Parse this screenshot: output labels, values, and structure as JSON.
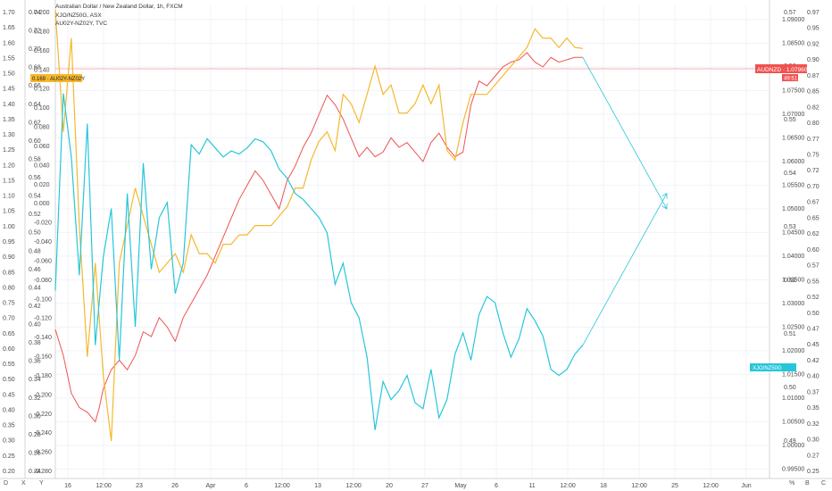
{
  "chart_data": {
    "type": "line",
    "legend": [
      "Australian Dollar / New Zealand Dollar, 1h, FXCM",
      "XJO/NZ50G, ASX",
      "AU02Y-NZ02Y, TVC"
    ],
    "x_ticks": [
      "16",
      "12:00",
      "23",
      "26",
      "Apr",
      "6",
      "12:00",
      "13",
      "12:00",
      "20",
      "27",
      "May",
      "6",
      "11",
      "12:00",
      "18",
      "12:00",
      "25",
      "12:00",
      "Jun"
    ],
    "axes": {
      "far_left": {
        "ticks": [
          "1.70",
          "1.65",
          "1.60",
          "1.55",
          "1.50",
          "1.45",
          "1.40",
          "1.35",
          "1.30",
          "1.25",
          "1.20",
          "1.15",
          "1.10",
          "1.05",
          "1.00",
          "0.95",
          "0.90",
          "0.85",
          "0.80",
          "0.75",
          "0.70",
          "0.65",
          "0.60",
          "0.55",
          "0.50",
          "0.45",
          "0.40",
          "0.35",
          "0.30",
          "0.25",
          "0.20"
        ]
      },
      "inner_left": {
        "ticks": [
          "0.74",
          "0.72",
          "0.70",
          "0.68",
          "0.66",
          "0.64",
          "0.62",
          "0.60",
          "0.58",
          "0.56",
          "0.54",
          "0.52",
          "0.50",
          "0.48",
          "0.46",
          "0.44",
          "0.42",
          "0.40",
          "0.38",
          "0.36",
          "0.34",
          "0.32",
          "0.30",
          "0.28",
          "0.26",
          "0.24"
        ]
      },
      "inner_left_b": {
        "ticks": [
          "0.200",
          "0.180",
          "0.160",
          "0.140",
          "0.120",
          "0.100",
          "0.080",
          "0.060",
          "0.040",
          "0.020",
          "0.000",
          "-0.020",
          "-0.040",
          "-0.060",
          "-0.080",
          "-0.100",
          "-0.120",
          "-0.140",
          "-0.160",
          "-0.180",
          "-0.200",
          "-0.220",
          "-0.240",
          "-0.260",
          "-0.280"
        ]
      },
      "price_right": {
        "ticks": [
          "1.09000",
          "1.08500",
          "1.08000",
          "1.07500",
          "1.07000",
          "1.06500",
          "1.06000",
          "1.05500",
          "1.05000",
          "1.04500",
          "1.04000",
          "1.03500",
          "1.03000",
          "1.02500",
          "1.02000",
          "1.01500",
          "1.01000",
          "1.00500",
          "1.00000",
          "0.99500"
        ]
      },
      "far_right": {
        "ticks": [
          "0.97",
          "0.95",
          "0.92",
          "0.90",
          "0.87",
          "0.85",
          "0.82",
          "0.80",
          "0.77",
          "0.75",
          "0.72",
          "0.70",
          "0.67",
          "0.65",
          "0.62",
          "0.60",
          "0.57",
          "0.55",
          "0.52",
          "0.50",
          "0.47",
          "0.45",
          "0.42",
          "0.40",
          "0.37",
          "0.35",
          "0.32",
          "0.30",
          "0.27",
          "0.25"
        ]
      },
      "alt_right": {
        "ticks": [
          "0.57",
          "0.56",
          "0.55",
          "0.54",
          "0.53",
          "0.52",
          "0.51",
          "0.50",
          "0.49"
        ]
      }
    },
    "series": [
      {
        "color": "#ef5350",
        "x": [
          0,
          10,
          20,
          30,
          40,
          50,
          55,
          60,
          70,
          80,
          90,
          100,
          110,
          120,
          130,
          140,
          150,
          160,
          170,
          180,
          190,
          200,
          210,
          220,
          230,
          240,
          250,
          260,
          270,
          280,
          290,
          300,
          310,
          320,
          330,
          340,
          350,
          360,
          370,
          380,
          390,
          400,
          410,
          420,
          430,
          440,
          450,
          460,
          470,
          480,
          490,
          500,
          510,
          520,
          530,
          540,
          550,
          560,
          570,
          580,
          590,
          600,
          610,
          620,
          630,
          640,
          650,
          660
        ],
        "y": [
          1.0245,
          1.019,
          1.011,
          1.008,
          1.007,
          1.005,
          1.008,
          1.012,
          1.016,
          1.018,
          1.016,
          1.019,
          1.024,
          1.023,
          1.027,
          1.025,
          1.022,
          1.027,
          1.03,
          1.033,
          1.036,
          1.04,
          1.044,
          1.048,
          1.052,
          1.055,
          1.058,
          1.056,
          1.053,
          1.05,
          1.056,
          1.059,
          1.063,
          1.066,
          1.07,
          1.074,
          1.072,
          1.069,
          1.065,
          1.061,
          1.063,
          1.061,
          1.062,
          1.065,
          1.063,
          1.064,
          1.062,
          1.06,
          1.064,
          1.066,
          1.063,
          1.061,
          1.062,
          1.072,
          1.077,
          1.076,
          1.078,
          1.08,
          1.081,
          1.0815,
          1.083,
          1.081,
          1.08,
          1.082,
          1.081,
          1.0815,
          1.082,
          1.082
        ]
      },
      {
        "color": "#f5b82e",
        "x": [
          0,
          10,
          20,
          30,
          40,
          50,
          60,
          70,
          80,
          90,
          100,
          110,
          120,
          130,
          140,
          150,
          160,
          170,
          180,
          190,
          200,
          210,
          220,
          230,
          240,
          250,
          260,
          270,
          280,
          290,
          300,
          310,
          320,
          330,
          340,
          350,
          360,
          370,
          380,
          390,
          400,
          410,
          420,
          430,
          440,
          450,
          460,
          470,
          480,
          490,
          500,
          510,
          520,
          530,
          540,
          550,
          560,
          570,
          580,
          590,
          600,
          610,
          620,
          630,
          640,
          650,
          660
        ],
        "y": [
          0.21,
          0.08,
          0.18,
          -0.02,
          -0.16,
          -0.06,
          -0.18,
          -0.25,
          -0.06,
          -0.02,
          0.02,
          -0.01,
          -0.04,
          -0.07,
          -0.06,
          -0.05,
          -0.07,
          -0.03,
          -0.05,
          -0.05,
          -0.06,
          -0.04,
          -0.04,
          -0.03,
          -0.03,
          -0.02,
          -0.02,
          -0.02,
          -0.01,
          0.0,
          0.02,
          0.02,
          0.05,
          0.07,
          0.08,
          0.06,
          0.12,
          0.11,
          0.09,
          0.12,
          0.15,
          0.12,
          0.13,
          0.1,
          0.1,
          0.11,
          0.13,
          0.11,
          0.13,
          0.06,
          0.05,
          0.09,
          0.12,
          0.12,
          0.12,
          0.13,
          0.14,
          0.15,
          0.16,
          0.17,
          0.19,
          0.18,
          0.18,
          0.17,
          0.18,
          0.17,
          0.169
        ]
      },
      {
        "color": "#26c6da",
        "x": [
          0,
          10,
          20,
          30,
          40,
          50,
          60,
          70,
          80,
          90,
          100,
          110,
          120,
          130,
          140,
          150,
          160,
          170,
          180,
          190,
          200,
          210,
          220,
          230,
          240,
          250,
          260,
          270,
          280,
          290,
          300,
          310,
          320,
          330,
          340,
          350,
          360,
          370,
          380,
          390,
          400,
          410,
          420,
          430,
          440,
          450,
          460,
          470,
          480,
          490,
          500,
          510,
          520,
          530,
          540,
          550,
          560,
          570,
          580,
          590,
          600,
          610,
          620,
          630,
          640,
          650,
          660
        ],
        "y": [
          0.78,
          1.43,
          1.22,
          0.83,
          1.33,
          0.6,
          0.89,
          1.05,
          0.55,
          1.1,
          0.66,
          1.2,
          0.85,
          1.02,
          1.07,
          0.77,
          0.87,
          1.26,
          1.23,
          1.28,
          1.25,
          1.22,
          1.24,
          1.23,
          1.25,
          1.28,
          1.27,
          1.24,
          1.18,
          1.15,
          1.1,
          1.08,
          1.05,
          1.02,
          0.97,
          0.8,
          0.87,
          0.74,
          0.69,
          0.56,
          0.32,
          0.48,
          0.42,
          0.45,
          0.5,
          0.41,
          0.39,
          0.52,
          0.36,
          0.42,
          0.57,
          0.64,
          0.55,
          0.7,
          0.76,
          0.74,
          0.64,
          0.56,
          0.62,
          0.72,
          0.68,
          0.63,
          0.52,
          0.5,
          0.52,
          0.57,
          0.6
        ]
      }
    ],
    "projections": [
      {
        "color": "#26c6da",
        "from": [
          660,
          1.082
        ],
        "to": [
          765,
          1.05
        ]
      },
      {
        "color": "#26c6da",
        "from": [
          660,
          0.6
        ],
        "to": [
          765,
          1.1
        ]
      }
    ],
    "horizontal_line": {
      "color": "#ef5350",
      "value": 1.0796
    },
    "labels": {
      "price_right": {
        "text": "AUDNZD · 1.07960",
        "sub": "49:51",
        "color": "#ef5350"
      },
      "orange_left": {
        "text": "0.169 · AU02Y-NZ02Y",
        "color": "#f5b82e"
      },
      "cyan_right": {
        "text": "XJO/NZ50G",
        "color": "#26c6da"
      }
    },
    "grid": true
  },
  "corner_buttons": [
    "D",
    "X",
    "Y",
    "%",
    "B",
    "C"
  ]
}
